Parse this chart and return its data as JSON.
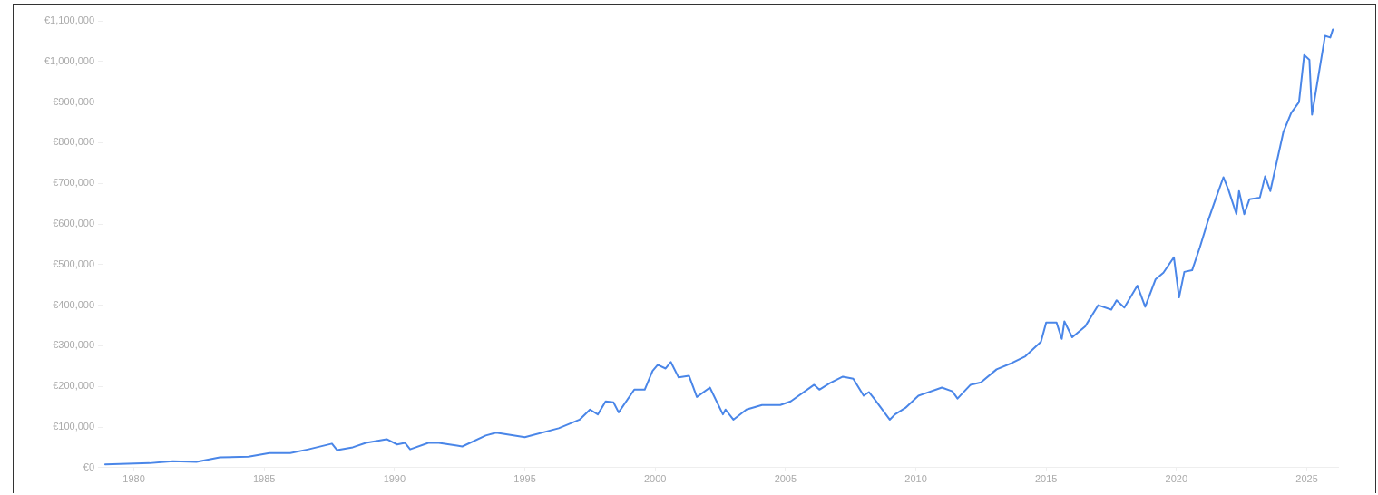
{
  "chart_data": {
    "type": "line",
    "xlim": [
      1978.8,
      2026.2
    ],
    "xticks": [
      1980,
      1985,
      1990,
      1995,
      2000,
      2005,
      2010,
      2015,
      2020,
      2025
    ],
    "ylim": [
      0,
      1100000
    ],
    "yticks": [
      {
        "value": 0,
        "label": "€0"
      },
      {
        "value": 100000,
        "label": "€100,000"
      },
      {
        "value": 200000,
        "label": "€200,000"
      },
      {
        "value": 300000,
        "label": "€300,000"
      },
      {
        "value": 400000,
        "label": "€400,000"
      },
      {
        "value": 500000,
        "label": "€500,000"
      },
      {
        "value": 600000,
        "label": "€600,000"
      },
      {
        "value": 700000,
        "label": "€700,000"
      },
      {
        "value": 800000,
        "label": "€800,000"
      },
      {
        "value": 900000,
        "label": "€900,000"
      },
      {
        "value": 1000000,
        "label": "€1,000,000"
      },
      {
        "value": 1100000,
        "label": "€1,100,000"
      }
    ],
    "grid": false,
    "legend": false,
    "marker": "none",
    "line_style": "solid",
    "series": [
      {
        "color": "#4a86e8",
        "x": [
          1978.9,
          1980.6,
          1981.5,
          1982.4,
          1983.3,
          1984.4,
          1985.2,
          1986.0,
          1986.7,
          1987.6,
          1987.8,
          1988.4,
          1988.9,
          1989.7,
          1990.1,
          1990.4,
          1990.6,
          1991.3,
          1991.7,
          1992.4,
          1992.6,
          1993.5,
          1993.9,
          1995.0,
          1996.3,
          1997.1,
          1997.5,
          1997.8,
          1998.1,
          1998.4,
          1998.6,
          1999.2,
          1999.6,
          1999.9,
          2000.1,
          2000.4,
          2000.6,
          2000.9,
          2001.3,
          2001.6,
          2002.1,
          2002.6,
          2002.7,
          2003.0,
          2003.5,
          2004.1,
          2004.8,
          2005.2,
          2006.1,
          2006.3,
          2006.7,
          2007.2,
          2007.6,
          2008.0,
          2008.2,
          2008.4,
          2009.0,
          2009.2,
          2009.6,
          2010.1,
          2011.0,
          2011.4,
          2011.6,
          2012.1,
          2012.5,
          2013.1,
          2013.7,
          2014.2,
          2014.8,
          2015.0,
          2015.4,
          2015.6,
          2015.7,
          2016.0,
          2016.5,
          2017.0,
          2017.5,
          2017.7,
          2018.0,
          2018.5,
          2018.8,
          2019.2,
          2019.5,
          2019.9,
          2020.1,
          2020.3,
          2020.6,
          2020.9,
          2021.2,
          2021.5,
          2021.8,
          2022.0,
          2022.3,
          2022.4,
          2022.6,
          2022.8,
          2023.2,
          2023.4,
          2023.6,
          2024.1,
          2024.4,
          2024.7,
          2024.9,
          2025.1,
          2025.2,
          2025.7,
          2025.9,
          2026.0
        ],
        "values": [
          8000,
          11000,
          16000,
          14000,
          25000,
          27000,
          36000,
          36000,
          45000,
          59000,
          43000,
          50000,
          61000,
          70000,
          57000,
          61000,
          45000,
          61000,
          61000,
          54000,
          52000,
          79000,
          86000,
          75000,
          97000,
          118000,
          143000,
          131000,
          163000,
          161000,
          136000,
          192000,
          192000,
          238000,
          253000,
          244000,
          260000,
          222000,
          226000,
          174000,
          197000,
          131000,
          143000,
          118000,
          143000,
          154000,
          154000,
          163000,
          204000,
          192000,
          208000,
          224000,
          219000,
          177000,
          186000,
          170000,
          118000,
          131000,
          147000,
          177000,
          197000,
          188000,
          170000,
          204000,
          210000,
          242000,
          258000,
          274000,
          310000,
          357000,
          357000,
          317000,
          360000,
          321000,
          348000,
          400000,
          389000,
          412000,
          394000,
          448000,
          396000,
          464000,
          480000,
          518000,
          419000,
          482000,
          486000,
          543000,
          606000,
          661000,
          715000,
          683000,
          624000,
          681000,
          624000,
          661000,
          665000,
          717000,
          681000,
          826000,
          873000,
          900000,
          1016000,
          1004000,
          869000,
          1063000,
          1059000,
          1079000
        ]
      }
    ]
  }
}
